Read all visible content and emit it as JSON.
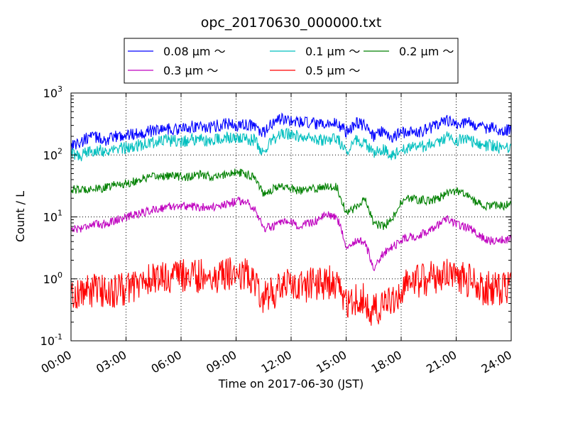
{
  "chart_data": {
    "type": "line",
    "title": "opc_20170630_000000.txt",
    "xlabel": "Time on 2017-06-30 (JST)",
    "ylabel": "Count / L",
    "x_range_hours": [
      0,
      24
    ],
    "ylim": [
      0.1,
      1000
    ],
    "yscale": "log",
    "grid": true,
    "legend_placement": "top-center",
    "x_tick_hours": [
      0,
      3,
      6,
      9,
      12,
      15,
      18,
      21,
      24
    ],
    "x_tick_labels": [
      "00:00",
      "03:00",
      "06:00",
      "09:00",
      "12:00",
      "15:00",
      "18:00",
      "21:00",
      "24:00"
    ],
    "y_ticks": [
      {
        "value": 0.1,
        "base": "10",
        "exp": "-1"
      },
      {
        "value": 1,
        "base": "10",
        "exp": "0"
      },
      {
        "value": 10,
        "base": "10",
        "exp": "1"
      },
      {
        "value": 100,
        "base": "10",
        "exp": "2"
      },
      {
        "value": 1000,
        "base": "10",
        "exp": "3"
      }
    ],
    "series": [
      {
        "name": "0.08 μm ～",
        "color": "#0000ff",
        "noise": 0.1,
        "x": [
          0,
          0.5,
          1,
          1.5,
          2,
          2.5,
          3,
          3.5,
          4,
          4.5,
          5,
          5.5,
          6,
          6.5,
          7,
          7.5,
          8,
          8.5,
          9,
          9.5,
          10,
          10.5,
          11,
          11.5,
          12,
          12.5,
          13,
          13.5,
          14,
          14.5,
          15,
          15.5,
          16,
          16.5,
          17,
          17.5,
          18,
          18.5,
          19,
          19.5,
          20,
          20.5,
          21,
          21.5,
          22,
          22.5,
          23,
          23.5,
          24
        ],
        "values": [
          150,
          155,
          200,
          190,
          170,
          200,
          210,
          220,
          230,
          250,
          270,
          260,
          260,
          280,
          300,
          270,
          300,
          330,
          290,
          310,
          290,
          220,
          330,
          380,
          360,
          330,
          330,
          300,
          310,
          330,
          240,
          330,
          300,
          200,
          250,
          190,
          230,
          230,
          240,
          270,
          300,
          370,
          310,
          350,
          300,
          270,
          280,
          250,
          260
        ]
      },
      {
        "name": "0.1 μm ～",
        "color": "#00bfbf",
        "noise": 0.1,
        "x": [
          0,
          0.5,
          1,
          1.5,
          2,
          2.5,
          3,
          3.5,
          4,
          4.5,
          5,
          5.5,
          6,
          6.5,
          7,
          7.5,
          8,
          8.5,
          9,
          9.5,
          10,
          10.5,
          11,
          11.5,
          12,
          12.5,
          13,
          13.5,
          14,
          14.5,
          15,
          15.5,
          16,
          16.5,
          17,
          17.5,
          18,
          18.5,
          19,
          19.5,
          20,
          20.5,
          21,
          21.5,
          22,
          22.5,
          23,
          23.5,
          24
        ],
        "values": [
          105,
          95,
          115,
          125,
          110,
          125,
          130,
          140,
          150,
          160,
          175,
          170,
          165,
          175,
          180,
          165,
          180,
          190,
          180,
          185,
          170,
          110,
          180,
          220,
          210,
          200,
          190,
          175,
          180,
          190,
          110,
          180,
          160,
          100,
          130,
          100,
          125,
          130,
          130,
          150,
          160,
          200,
          170,
          190,
          160,
          140,
          145,
          125,
          130
        ]
      },
      {
        "name": "0.2 μm ～",
        "color": "#008000",
        "noise": 0.07,
        "x": [
          0,
          0.5,
          1,
          1.5,
          2,
          2.5,
          3,
          3.5,
          4,
          4.5,
          5,
          5.5,
          6,
          6.5,
          7,
          7.5,
          8,
          8.5,
          9,
          9.5,
          10,
          10.5,
          11,
          11.5,
          12,
          12.5,
          13,
          13.5,
          14,
          14.5,
          15,
          15.5,
          16,
          16.5,
          17,
          17.5,
          18,
          18.5,
          19,
          19.5,
          20,
          20.5,
          21,
          21.5,
          22,
          22.5,
          23,
          23.5,
          24
        ],
        "values": [
          28,
          27,
          29,
          28,
          30,
          34,
          34,
          38,
          42,
          44,
          46,
          46,
          45,
          44,
          48,
          45,
          44,
          50,
          52,
          50,
          45,
          24,
          28,
          32,
          29,
          26,
          28,
          29,
          32,
          30,
          12,
          14,
          20,
          8,
          7,
          9,
          17,
          20,
          19,
          18,
          20,
          24,
          26,
          24,
          18,
          15,
          15,
          15,
          16
        ]
      },
      {
        "name": "0.3 μm ～",
        "color": "#bf00bf",
        "noise": 0.07,
        "x": [
          0,
          0.5,
          1,
          1.5,
          2,
          2.5,
          3,
          3.5,
          4,
          4.5,
          5,
          5.5,
          6,
          6.5,
          7,
          7.5,
          8,
          8.5,
          9,
          9.5,
          10,
          10.5,
          11,
          11.5,
          12,
          12.5,
          13,
          13.5,
          14,
          14.5,
          15,
          15.5,
          16,
          16.5,
          17,
          17.5,
          18,
          18.5,
          19,
          19.5,
          20,
          20.5,
          21,
          21.5,
          22,
          22.5,
          23,
          23.5,
          24
        ],
        "values": [
          6.5,
          6.5,
          7.5,
          7.5,
          8,
          9,
          10,
          11,
          12,
          13,
          14,
          15,
          15,
          15,
          14,
          15,
          14,
          16,
          18,
          18,
          14,
          6.5,
          7,
          8,
          8,
          7,
          8,
          9,
          11,
          10,
          3.5,
          4,
          4,
          1.5,
          2.5,
          3.2,
          4.2,
          4.8,
          5,
          6,
          7.5,
          9,
          7.5,
          7,
          6,
          4.5,
          4,
          4.2,
          4.5
        ]
      },
      {
        "name": "0.5 μm ～",
        "color": "#ff0000",
        "noise": 0.28,
        "x": [
          0,
          0.5,
          1,
          1.5,
          2,
          2.5,
          3,
          3.5,
          4,
          4.5,
          5,
          5.5,
          6,
          6.5,
          7,
          7.5,
          8,
          8.5,
          9,
          9.5,
          10,
          10.5,
          11,
          11.5,
          12,
          12.5,
          13,
          13.5,
          14,
          14.5,
          15,
          15.5,
          16,
          16.5,
          17,
          17.5,
          18,
          18.5,
          19,
          19.5,
          20,
          20.5,
          21,
          21.5,
          22,
          22.5,
          23,
          23.5,
          24
        ],
        "values": [
          0.55,
          0.6,
          0.65,
          0.65,
          0.6,
          0.65,
          0.7,
          0.8,
          0.9,
          1.0,
          1.05,
          1.1,
          1.1,
          1.1,
          1.1,
          1.15,
          1.1,
          1.2,
          1.25,
          1.2,
          1.0,
          0.5,
          0.6,
          0.75,
          0.8,
          0.75,
          0.8,
          0.85,
          0.9,
          0.8,
          0.4,
          0.45,
          0.45,
          0.3,
          0.35,
          0.4,
          0.75,
          0.9,
          0.95,
          1.0,
          1.1,
          1.2,
          1.05,
          1.0,
          0.85,
          0.7,
          0.7,
          0.7,
          0.75
        ]
      }
    ]
  }
}
